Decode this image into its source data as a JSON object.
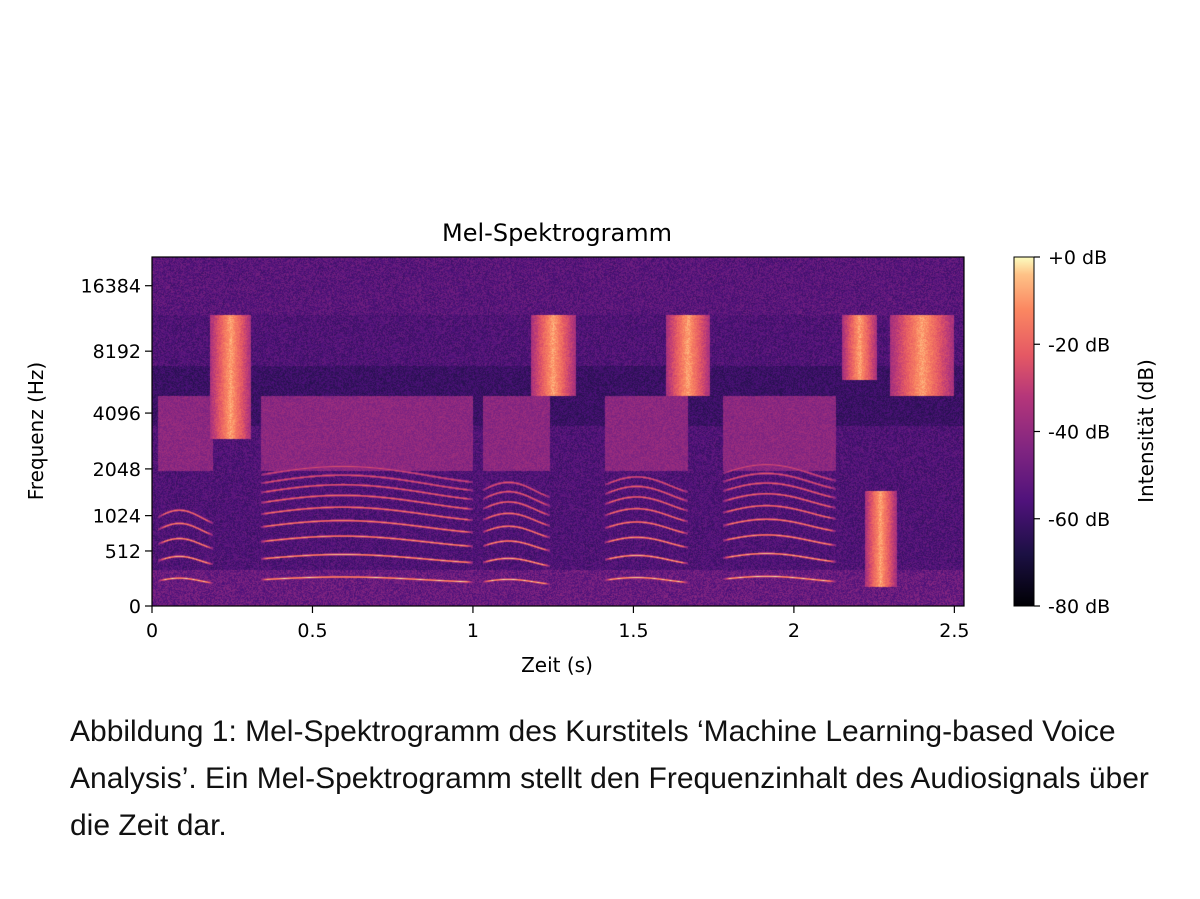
{
  "chart_data": {
    "type": "heatmap",
    "title": "Mel-Spektrogramm",
    "xlabel": "Zeit (s)",
    "ylabel": "Frequenz (Hz)",
    "x_ticks": [
      "0",
      "0.5",
      "1",
      "1.5",
      "2",
      "2.5"
    ],
    "y_ticks": [
      "0",
      "512",
      "1024",
      "2048",
      "4096",
      "8192",
      "16384"
    ],
    "xlim": [
      0,
      2.53
    ],
    "y_scale": "mel",
    "colorbar": {
      "label": "Intensität (dB)",
      "ticks": [
        "+0 dB",
        "-20 dB",
        "-40 dB",
        "-60 dB",
        "-80 dB"
      ],
      "range": [
        -80,
        0
      ],
      "colormap": "magma"
    },
    "segments": [
      {
        "start": 0.02,
        "end": 0.19,
        "f0": 200,
        "harmonics": 5
      },
      {
        "start": 0.34,
        "end": 1.0,
        "f0": 210,
        "harmonics": 9
      },
      {
        "start": 1.03,
        "end": 1.24,
        "f0": 190,
        "harmonics": 8
      },
      {
        "start": 1.41,
        "end": 1.67,
        "f0": 205,
        "harmonics": 8
      },
      {
        "start": 1.78,
        "end": 2.13,
        "f0": 215,
        "harmonics": 9
      }
    ],
    "fricatives": [
      {
        "start": 0.18,
        "end": 0.31,
        "low": 3000,
        "high": 12000
      },
      {
        "start": 1.18,
        "end": 1.32,
        "low": 5000,
        "high": 12000
      },
      {
        "start": 1.6,
        "end": 1.74,
        "low": 5000,
        "high": 12000
      },
      {
        "start": 2.15,
        "end": 2.26,
        "low": 6000,
        "high": 12000
      },
      {
        "start": 2.3,
        "end": 2.5,
        "low": 5000,
        "high": 12000
      },
      {
        "start": 2.22,
        "end": 2.32,
        "low": 150,
        "high": 1500
      }
    ]
  },
  "caption": "Abbildung 1: Mel-Spektrogramm des Kurstitels ‘Machine Learning-based Voice Analysis’. Ein Mel-Spektrogramm stellt den Frequenzinhalt des Audiosignals über die Zeit dar."
}
